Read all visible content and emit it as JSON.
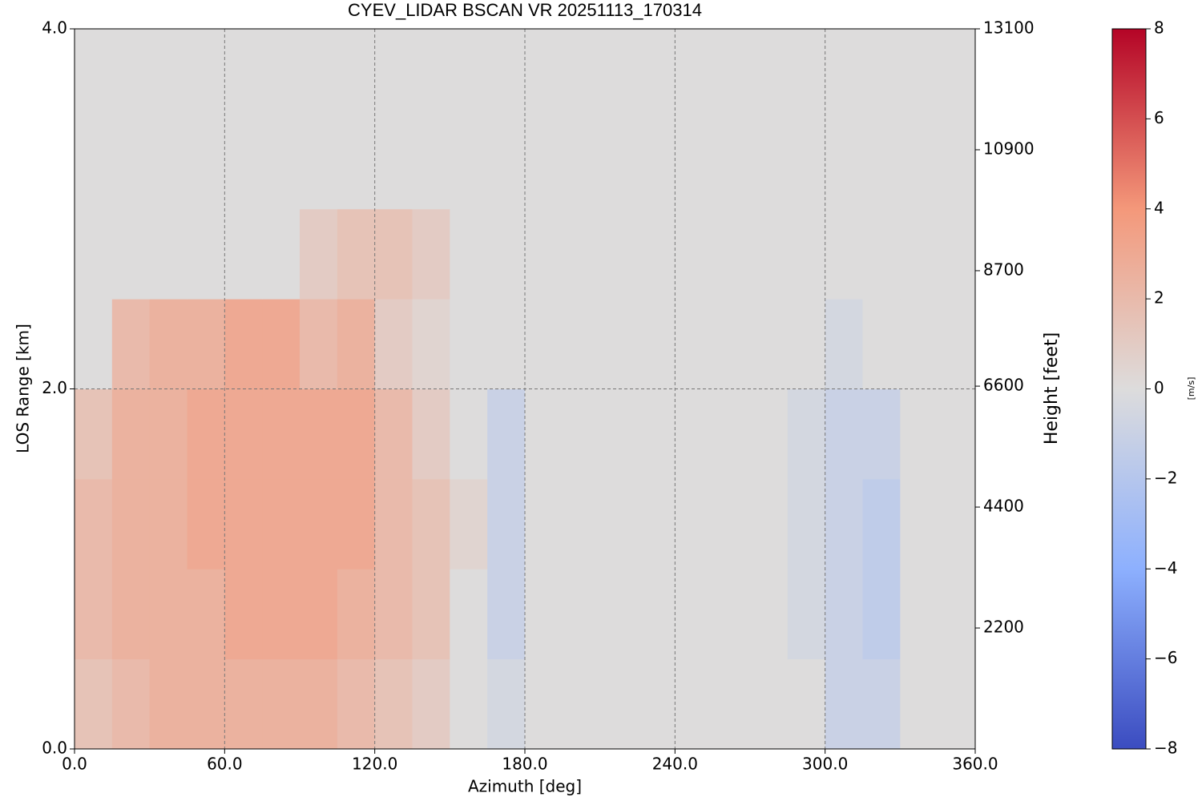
{
  "chart_data": {
    "type": "heatmap",
    "title": "CYEV_LIDAR BSCAN VR  20251113_170314",
    "x_label": "Azimuth [deg]",
    "y_label": "LOS Range [km]",
    "y2_label": "Height [feet]",
    "colorbar_label": "[m/s]",
    "x_bins": [
      0,
      15,
      30,
      45,
      60,
      75,
      90,
      105,
      120,
      135,
      150,
      165,
      180,
      195,
      210,
      225,
      240,
      255,
      270,
      285,
      300,
      315,
      330,
      345,
      360
    ],
    "y_bins": [
      0,
      0.5,
      1,
      1.5,
      2,
      2.5,
      3,
      3.5,
      4
    ],
    "z": [
      [
        1.5,
        2,
        2.5,
        2.5,
        2.5,
        2.5,
        2.5,
        2,
        1.5,
        1,
        0,
        -0.5,
        0,
        0,
        0,
        0,
        0,
        0,
        0,
        0,
        -1,
        -1,
        0,
        0
      ],
      [
        2,
        2.5,
        2.5,
        2.5,
        3,
        3,
        3,
        2.5,
        2,
        1.5,
        0,
        -1,
        0,
        0,
        0,
        0,
        0,
        0,
        0,
        -0.5,
        -1,
        -1.5,
        0,
        0
      ],
      [
        2,
        2.5,
        2.5,
        3,
        3,
        3,
        3,
        3,
        2,
        1.5,
        0.5,
        -1,
        0,
        0,
        0,
        0,
        0,
        0,
        0,
        -0.5,
        -1,
        -1.5,
        0,
        0
      ],
      [
        1.5,
        2.5,
        2.5,
        3,
        3,
        3,
        3,
        3,
        2,
        1,
        0,
        -1,
        0,
        0,
        0,
        0,
        0,
        0,
        0,
        -0.5,
        -1,
        -1,
        0,
        0
      ],
      [
        0,
        2,
        2.5,
        2.5,
        3,
        3,
        2,
        2.5,
        1,
        0.5,
        0,
        0,
        0,
        0,
        0,
        0,
        0,
        0,
        0,
        0,
        -0.5,
        0,
        0,
        0
      ],
      [
        0,
        0,
        0,
        0,
        0,
        0,
        1,
        1.5,
        1.5,
        1,
        0,
        0,
        0,
        0,
        0,
        0,
        0,
        0,
        0,
        0,
        0,
        0,
        0,
        0
      ],
      [
        0,
        0,
        0,
        0,
        0,
        0,
        0,
        0,
        0,
        0,
        0,
        0,
        0,
        0,
        0,
        0,
        0,
        0,
        0,
        0,
        0,
        0,
        0,
        0
      ],
      [
        0,
        0,
        0,
        0,
        0,
        0,
        0,
        0,
        0,
        0,
        0,
        0,
        0,
        0,
        0,
        0,
        0,
        0,
        0,
        0,
        0,
        0,
        0,
        0
      ]
    ],
    "xlim": [
      0,
      360
    ],
    "xticks": [
      {
        "value": 0,
        "label": "0.0"
      },
      {
        "value": 60,
        "label": "60.0"
      },
      {
        "value": 120,
        "label": "120.0"
      },
      {
        "value": 180,
        "label": "180.0"
      },
      {
        "value": 240,
        "label": "240.0"
      },
      {
        "value": 300,
        "label": "300.0"
      },
      {
        "value": 360,
        "label": "360.0"
      }
    ],
    "ylim": [
      0,
      4
    ],
    "yticks": [
      {
        "value": 0,
        "label": "0.0"
      },
      {
        "value": 2,
        "label": "2.0"
      },
      {
        "value": 4,
        "label": "4.0"
      }
    ],
    "y2lim": [
      0,
      13100
    ],
    "y2ticks": [
      2200,
      4400,
      6600,
      8700,
      10900,
      13100
    ],
    "clim": [
      -8,
      8
    ],
    "cticks": [
      {
        "value": -8,
        "label": "−8"
      },
      {
        "value": -6,
        "label": "−6"
      },
      {
        "value": -4,
        "label": "−4"
      },
      {
        "value": -2,
        "label": "−2"
      },
      0,
      2,
      4,
      6,
      8
    ],
    "colormap": [
      "#3b4cc0",
      "#8db0fe",
      "#dddcdc",
      "#f4987a",
      "#b40426"
    ],
    "grid": true
  }
}
